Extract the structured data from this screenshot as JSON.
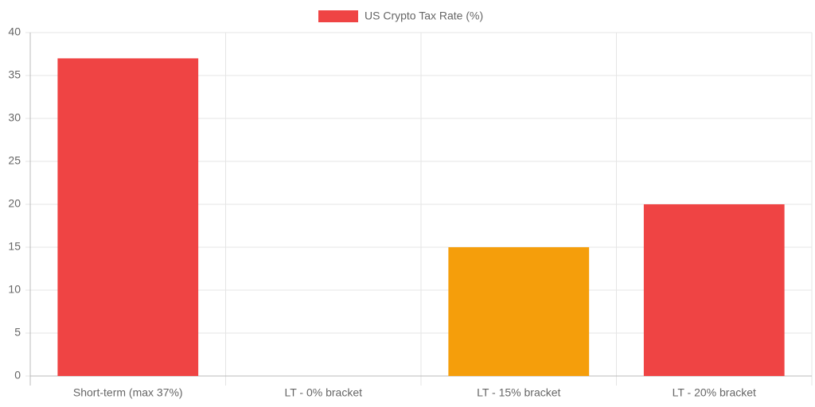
{
  "chart_data": {
    "type": "bar",
    "categories": [
      "Short-term (max 37%)",
      "LT - 0% bracket",
      "LT - 15% bracket",
      "LT - 20% bracket"
    ],
    "series": [
      {
        "name": "US Crypto Tax Rate (%)",
        "color": "#ef4444",
        "colors": [
          "#ef4444",
          "#ef4444",
          "#f59e0b",
          "#ef4444"
        ],
        "values": [
          37,
          0,
          15,
          20
        ]
      }
    ],
    "ylim": [
      0,
      40
    ],
    "yticks": [
      0,
      5,
      10,
      15,
      20,
      25,
      30,
      35,
      40
    ],
    "grid": true
  }
}
